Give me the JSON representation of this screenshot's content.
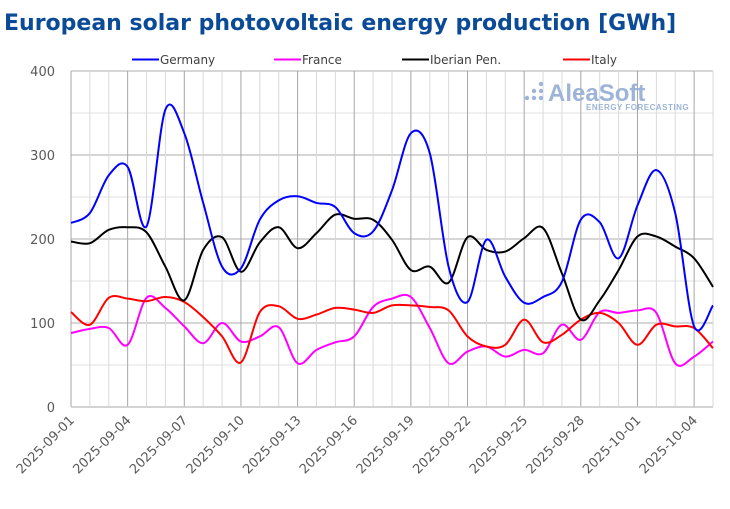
{
  "chart_data": {
    "type": "line",
    "title": "European solar photovoltaic energy production [GWh]",
    "xlabel": "",
    "ylabel": "",
    "ylim": [
      0,
      400
    ],
    "yticks": [
      0,
      100,
      200,
      300,
      400
    ],
    "grid": true,
    "legend_position": "top",
    "x": [
      "2025-09-01",
      "2025-09-02",
      "2025-09-03",
      "2025-09-04",
      "2025-09-05",
      "2025-09-06",
      "2025-09-07",
      "2025-09-08",
      "2025-09-09",
      "2025-09-10",
      "2025-09-11",
      "2025-09-12",
      "2025-09-13",
      "2025-09-14",
      "2025-09-15",
      "2025-09-16",
      "2025-09-17",
      "2025-09-18",
      "2025-09-19",
      "2025-09-20",
      "2025-09-21",
      "2025-09-22",
      "2025-09-23",
      "2025-09-24",
      "2025-09-25",
      "2025-09-26",
      "2025-09-27",
      "2025-09-28",
      "2025-09-29",
      "2025-09-30",
      "2025-10-01",
      "2025-10-02",
      "2025-10-03",
      "2025-10-04",
      "2025-10-05"
    ],
    "xtick_labels": [
      "2025-09-01",
      "2025-09-04",
      "2025-09-07",
      "2025-09-10",
      "2025-09-13",
      "2025-09-16",
      "2025-09-19",
      "2025-09-22",
      "2025-09-25",
      "2025-09-28",
      "2025-10-01",
      "2025-10-04"
    ],
    "series": [
      {
        "name": "Germany",
        "color": "#0000ff",
        "values": [
          219,
          231,
          276,
          286,
          215,
          354,
          326,
          243,
          167,
          165,
          223,
          246,
          251,
          243,
          238,
          207,
          209,
          258,
          326,
          302,
          167,
          125,
          199,
          155,
          124,
          131,
          149,
          223,
          220,
          177,
          240,
          282,
          231,
          96,
          121
        ]
      },
      {
        "name": "France",
        "color": "#ff00ff",
        "values": [
          88,
          93,
          94,
          74,
          130,
          118,
          96,
          76,
          100,
          78,
          84,
          95,
          52,
          68,
          77,
          84,
          119,
          129,
          131,
          94,
          52,
          66,
          72,
          60,
          68,
          64,
          98,
          80,
          113,
          112,
          115,
          112,
          52,
          60,
          78
        ]
      },
      {
        "name": "Iberian Pen.",
        "color": "#000000",
        "values": [
          197,
          195,
          211,
          214,
          208,
          167,
          127,
          187,
          202,
          161,
          196,
          214,
          189,
          207,
          229,
          224,
          223,
          199,
          163,
          167,
          148,
          202,
          187,
          185,
          201,
          213,
          159,
          104,
          127,
          163,
          203,
          203,
          191,
          177,
          143
        ]
      },
      {
        "name": "Italy",
        "color": "#ff0000",
        "values": [
          113,
          98,
          130,
          129,
          126,
          131,
          125,
          107,
          84,
          53,
          113,
          120,
          105,
          110,
          118,
          116,
          112,
          121,
          121,
          119,
          115,
          84,
          72,
          74,
          104,
          77,
          86,
          104,
          112,
          100,
          74,
          98,
          96,
          94,
          70
        ]
      }
    ]
  },
  "watermark": {
    "brand": "AleaSoft",
    "tagline": "ENERGY FORECASTING"
  },
  "colors": {
    "title": "#0b4a96",
    "grid_minor": "#d9d9d9",
    "grid_major": "#a6a6a6"
  }
}
